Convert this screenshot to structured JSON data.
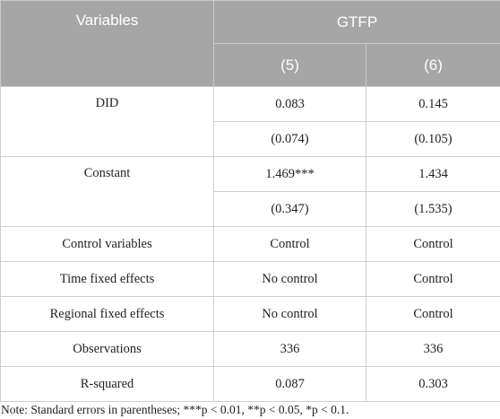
{
  "table": {
    "header": {
      "variables": "Variables",
      "group": "GTFP",
      "columns": [
        "(5)",
        "(6)"
      ]
    },
    "rows": [
      {
        "label": "DID",
        "values": [
          "0.083",
          "0.145"
        ],
        "se": [
          "(0.074)",
          "(0.105)"
        ]
      },
      {
        "label": "Constant",
        "values": [
          "1.469***",
          "1.434"
        ],
        "se": [
          "(0.347)",
          "(1.535)"
        ]
      },
      {
        "label": "Control variables",
        "values": [
          "Control",
          "Control"
        ]
      },
      {
        "label": "Time fixed effects",
        "values": [
          "No control",
          "Control"
        ]
      },
      {
        "label": "Regional fixed effects",
        "values": [
          "No control",
          "Control"
        ]
      },
      {
        "label": "Observations",
        "values": [
          "336",
          "336"
        ]
      },
      {
        "label": "R-squared",
        "values": [
          "0.087",
          "0.303"
        ]
      }
    ],
    "note": "Note: Standard errors in parentheses; ***p < 0.01, **p < 0.05, *p < 0.1."
  }
}
